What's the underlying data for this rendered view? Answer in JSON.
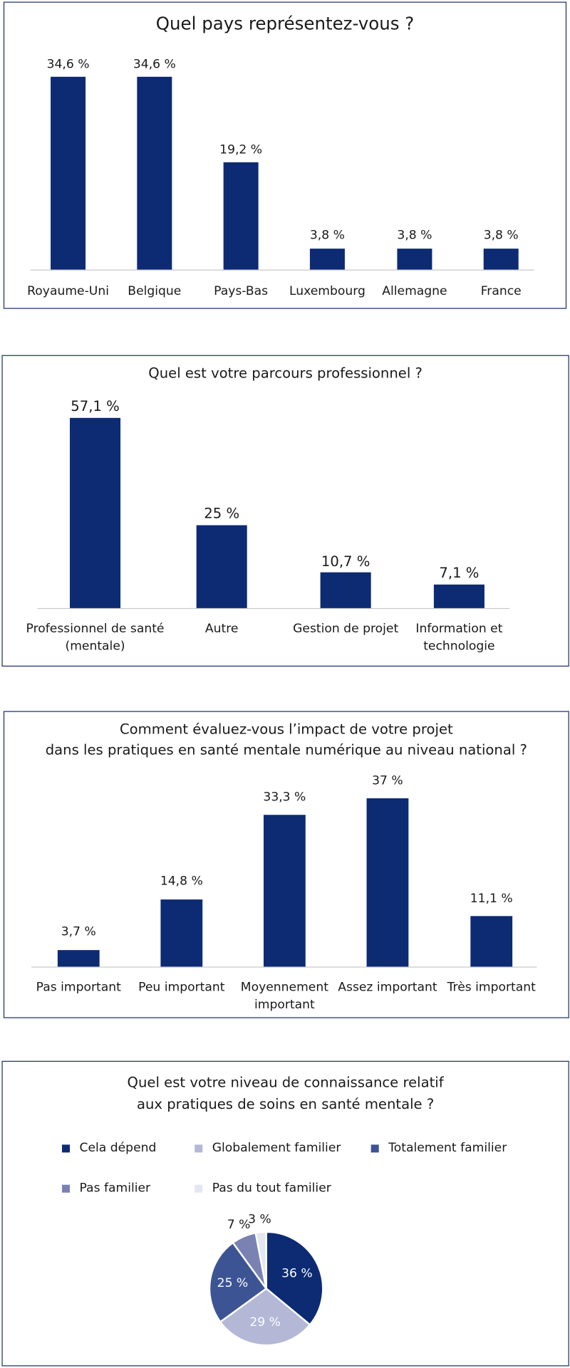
{
  "chart_data": [
    {
      "type": "bar",
      "title": "Quel pays représentez-vous ?",
      "categories": [
        "Royaume-Uni",
        "Belgique",
        "Pays-Bas",
        "Luxembourg",
        "Allemagne",
        "France"
      ],
      "values": [
        34.6,
        34.6,
        19.2,
        3.8,
        3.8,
        3.8
      ],
      "value_labels": [
        "34,6 %",
        "34,6 %",
        "19,2 %",
        "3,8 %",
        "3,8 %",
        "3,8 %"
      ],
      "color": "#0d2b72"
    },
    {
      "type": "bar",
      "title": "Quel est votre parcours professionnel ?",
      "categories": [
        "Professionnel de santé\n(mentale)",
        "Autre",
        "Gestion de projet",
        "Information et\ntechnologie"
      ],
      "values": [
        57.1,
        25,
        10.7,
        7.1
      ],
      "value_labels": [
        "57,1 %",
        "25 %",
        "10,7 %",
        "7,1 %"
      ],
      "color": "#0d2b72"
    },
    {
      "type": "bar",
      "title": "Comment évaluez-vous l’impact de votre projet\ndans les pratiques en santé mentale numérique au niveau national ?",
      "categories": [
        "Pas important",
        "Peu important",
        "Moyennement\nimportant",
        "Assez important",
        "Très important"
      ],
      "values": [
        3.7,
        14.8,
        33.3,
        37,
        11.1
      ],
      "value_labels": [
        "3,7 %",
        "14,8 %",
        "33,3 %",
        "37 %",
        "11,1 %"
      ],
      "color": "#0d2b72"
    },
    {
      "type": "pie",
      "title": "Quel est votre niveau de connaissance relatif\naux pratiques de soins en santé mentale ?",
      "categories": [
        "Cela dépend",
        "Globalement familier",
        "Totalement familier",
        "Pas familier",
        "Pas du tout familier"
      ],
      "values": [
        36,
        29,
        25,
        7,
        3
      ],
      "value_labels": [
        "36 %",
        "29 %",
        "25 %",
        "7 %",
        "3 %"
      ],
      "colors": [
        "#0d2b72",
        "#b4b8d6",
        "#3d5494",
        "#7a82b4",
        "#e4e6f0"
      ]
    }
  ]
}
